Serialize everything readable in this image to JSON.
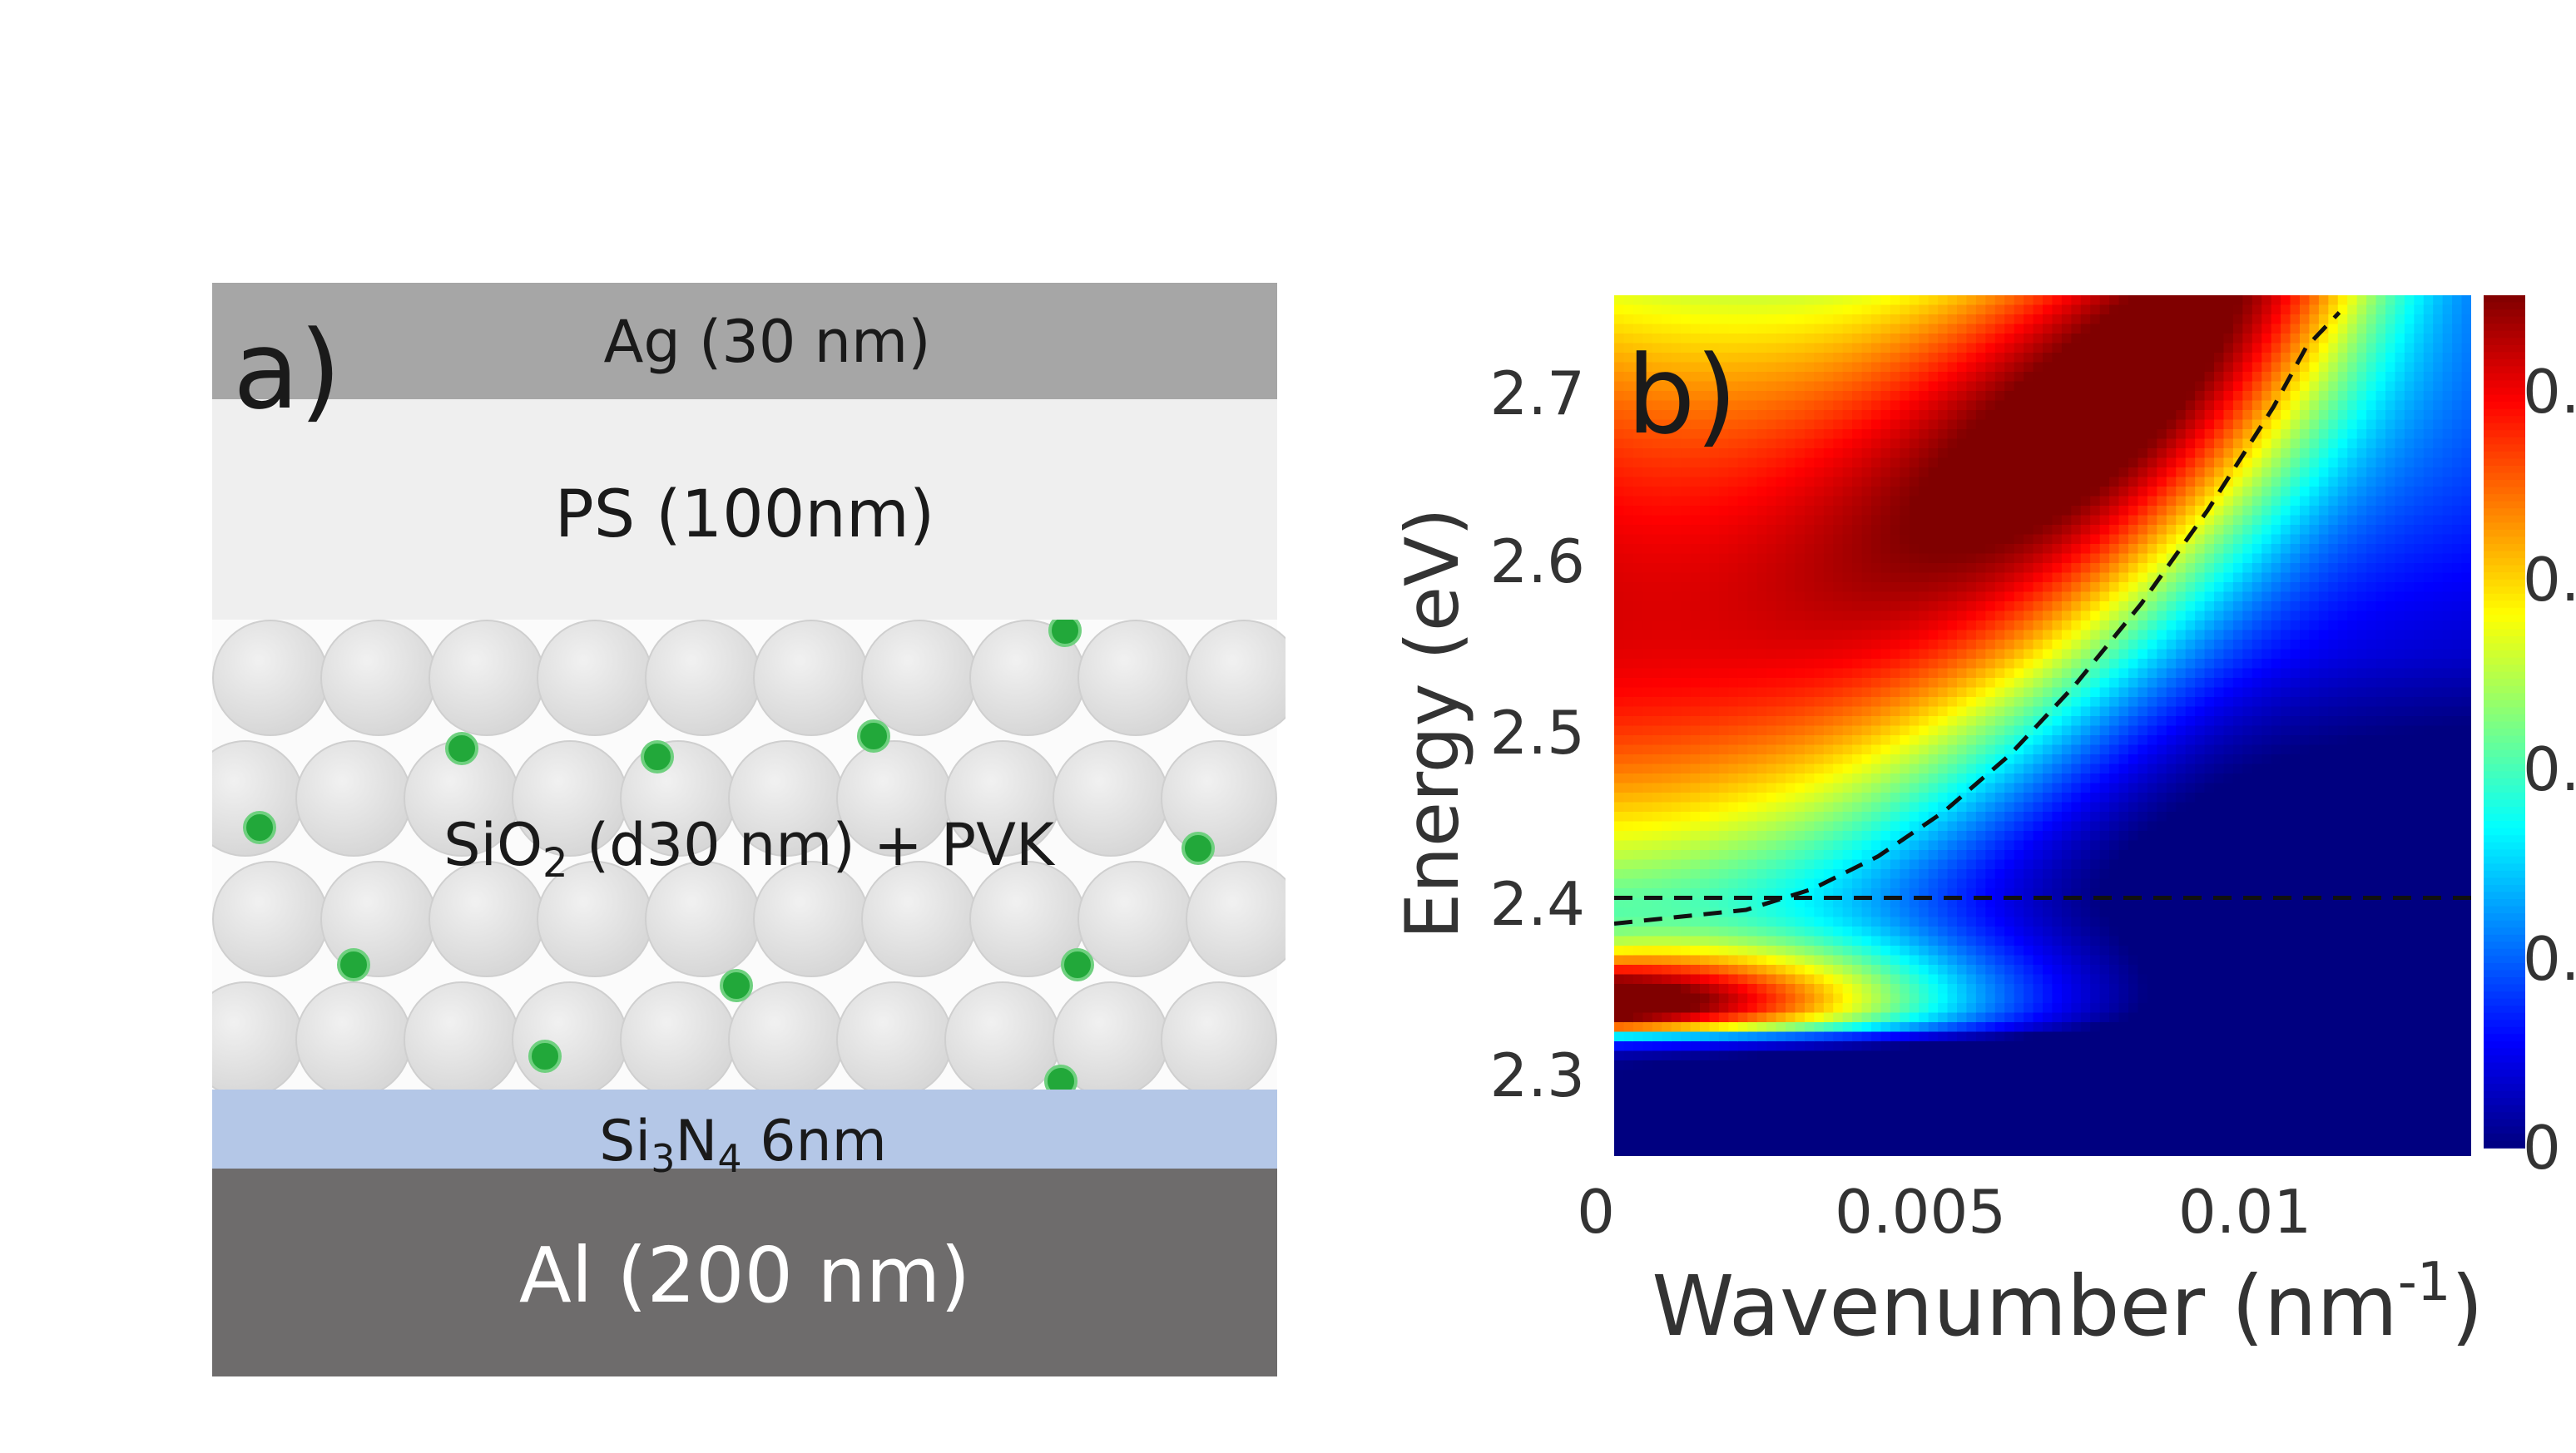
{
  "panel_a": {
    "label": "a)",
    "layers": {
      "ag": "Ag (30 nm)",
      "ps": "PS (100nm)",
      "composite": {
        "a": "SiO",
        "sub": "2",
        "b": " (d30 nm) + PVK"
      },
      "sin": {
        "a": "Si",
        "sub1": "3",
        "b": "N",
        "sub2": "4",
        "c": " 6nm"
      },
      "al": "Al (200 nm)"
    },
    "colors": {
      "ag": "#a6a6a6",
      "ps": "#efefef",
      "sin": "#b4c7e7",
      "al": "#6e6c6c",
      "sphere": "#e4e4e4",
      "dot": "#22a83a"
    }
  },
  "panel_b": {
    "label": "b)",
    "y_label": "Energy (eV)",
    "x_label": {
      "main": "Wavenumber (nm",
      "sup": "-1",
      "close": ")"
    },
    "y_ticks": [
      "2.3",
      "2.4",
      "2.5",
      "2.6",
      "2.7"
    ],
    "x_ticks": [
      "0",
      "0.005",
      "0.01"
    ],
    "colorbar_ticks": [
      "0",
      "0.",
      "0.",
      "0.",
      "0."
    ]
  },
  "chart_data": {
    "type": "heatmap",
    "xlabel": "Wavenumber (nm-1)",
    "ylabel": "Energy (eV)",
    "xlim": [
      0,
      0.013
    ],
    "ylim": [
      2.26,
      2.76
    ],
    "x_ticks": [
      0,
      0.005,
      0.01
    ],
    "y_ticks": [
      2.3,
      2.4,
      2.5,
      2.6,
      2.7
    ],
    "colormap": "jet",
    "exciton_energy": 2.41,
    "dispersion_curve": [
      {
        "x": 0,
        "y": 2.395
      },
      {
        "x": 0.002,
        "y": 2.403
      },
      {
        "x": 0.003,
        "y": 2.415
      },
      {
        "x": 0.004,
        "y": 2.434
      },
      {
        "x": 0.005,
        "y": 2.46
      },
      {
        "x": 0.006,
        "y": 2.493
      },
      {
        "x": 0.007,
        "y": 2.534
      },
      {
        "x": 0.008,
        "y": 2.581
      },
      {
        "x": 0.009,
        "y": 2.635
      },
      {
        "x": 0.01,
        "y": 2.695
      },
      {
        "x": 0.0105,
        "y": 2.73
      },
      {
        "x": 0.011,
        "y": 2.75
      }
    ]
  }
}
